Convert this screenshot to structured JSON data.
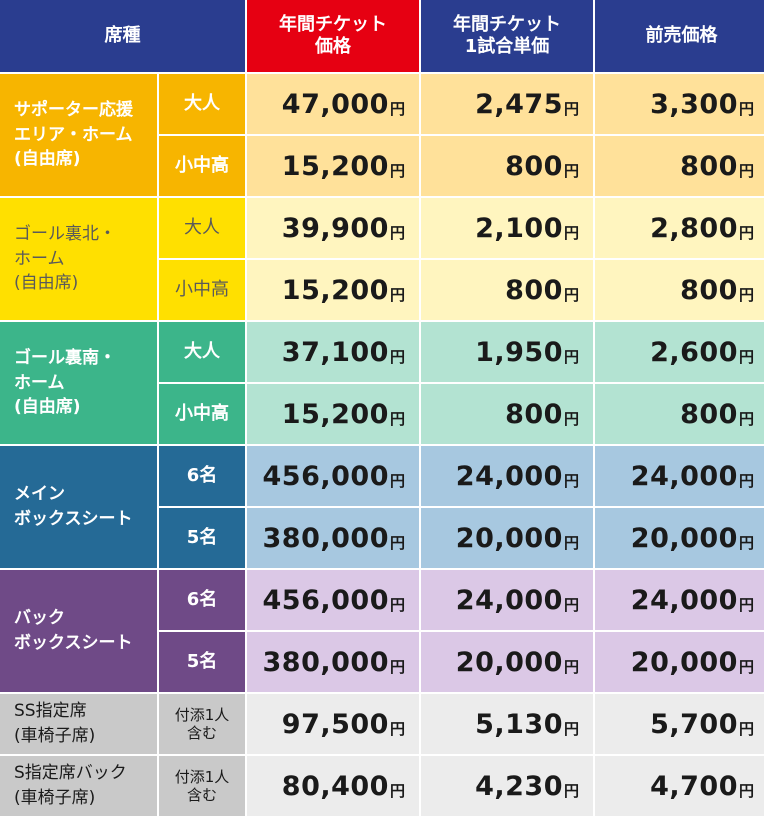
{
  "header": {
    "seat_type": "席種",
    "annual_ticket_price": "年間チケット\n価格",
    "annual_ticket_per_game": "年間チケット\n1試合単価",
    "advance_price": "前売価格"
  },
  "colors": {
    "header_blue": "#2a3d8f",
    "header_red": "#e60012",
    "supporter_area": "#f7b500",
    "goal_north": "#ffe000",
    "goal_south": "#3cb58a",
    "main_box": "#256a96",
    "back_box": "#6f4a87",
    "wheelchair": "#c9c9c9"
  },
  "yen": "円",
  "groups": [
    {
      "name": "サポーター応援\nエリア・ホーム\n(自由席)",
      "rows": [
        {
          "sub": "大人",
          "annual": "47,000",
          "per_game": "2,475",
          "advance": "3,300"
        },
        {
          "sub": "小中高",
          "annual": "15,200",
          "per_game": "800",
          "advance": "800"
        }
      ]
    },
    {
      "name": "ゴール裏北・\nホーム\n(自由席)",
      "rows": [
        {
          "sub": "大人",
          "annual": "39,900",
          "per_game": "2,100",
          "advance": "2,800"
        },
        {
          "sub": "小中高",
          "annual": "15,200",
          "per_game": "800",
          "advance": "800"
        }
      ]
    },
    {
      "name": "ゴール裏南・\nホーム\n(自由席)",
      "rows": [
        {
          "sub": "大人",
          "annual": "37,100",
          "per_game": "1,950",
          "advance": "2,600"
        },
        {
          "sub": "小中高",
          "annual": "15,200",
          "per_game": "800",
          "advance": "800"
        }
      ]
    },
    {
      "name": "メイン\nボックスシート",
      "rows": [
        {
          "sub": "6名",
          "annual": "456,000",
          "per_game": "24,000",
          "advance": "24,000"
        },
        {
          "sub": "5名",
          "annual": "380,000",
          "per_game": "20,000",
          "advance": "20,000"
        }
      ]
    },
    {
      "name": "バック\nボックスシート",
      "rows": [
        {
          "sub": "6名",
          "annual": "456,000",
          "per_game": "24,000",
          "advance": "24,000"
        },
        {
          "sub": "5名",
          "annual": "380,000",
          "per_game": "20,000",
          "advance": "20,000"
        }
      ]
    },
    {
      "name": "SS指定席\n(車椅子席)",
      "rows": [
        {
          "sub": "付添1人\n含む",
          "annual": "97,500",
          "per_game": "5,130",
          "advance": "5,700"
        }
      ]
    },
    {
      "name": "S指定席バック\n(車椅子席)",
      "rows": [
        {
          "sub": "付添1人\n含む",
          "annual": "80,400",
          "per_game": "4,230",
          "advance": "4,700"
        }
      ]
    }
  ]
}
